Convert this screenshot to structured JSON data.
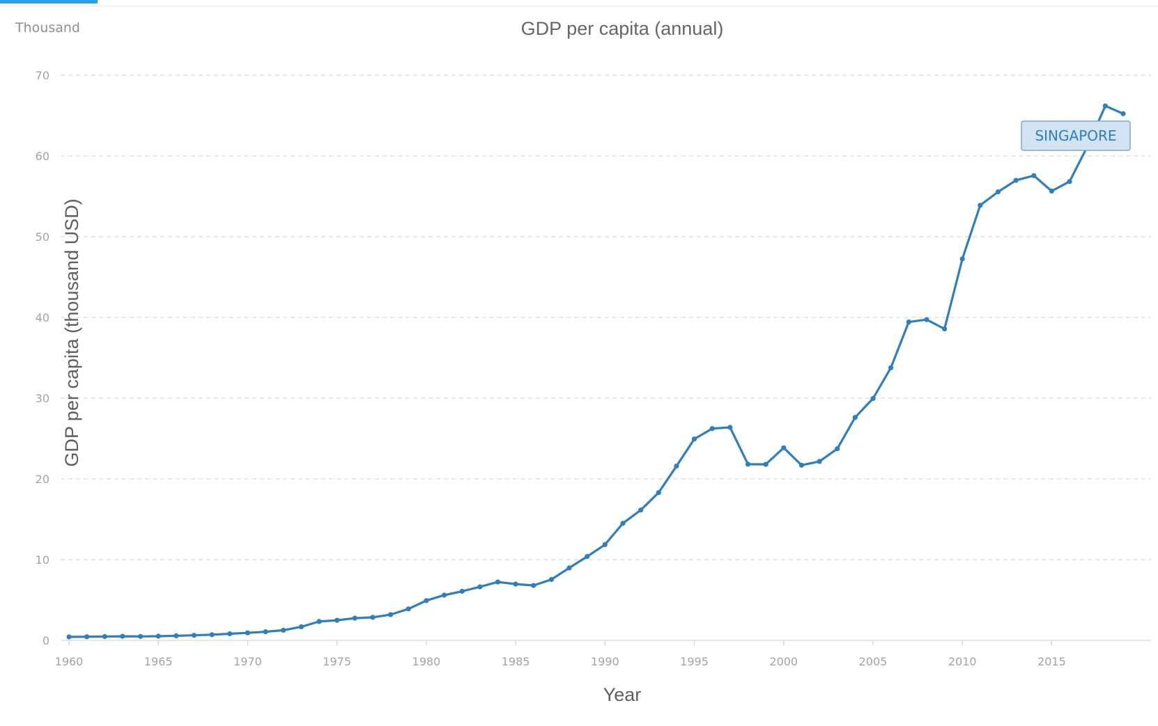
{
  "colors": {
    "series": "#2f7ebd",
    "tab_indicator": "#2aa3e6"
  },
  "chart_data": {
    "type": "line",
    "title": "GDP per capita (annual)",
    "unit_label": "Thousand",
    "xlabel": "Year",
    "ylabel": "GDP per capita (thousand USD)",
    "xlim": [
      1960,
      2019
    ],
    "ylim": [
      0,
      70
    ],
    "y_ticks": [
      0,
      10,
      20,
      30,
      40,
      50,
      60,
      70
    ],
    "x_ticks": [
      1960,
      1965,
      1970,
      1975,
      1980,
      1985,
      1990,
      1995,
      2000,
      2005,
      2010,
      2015
    ],
    "grid": true,
    "series": [
      {
        "name": "SINGAPORE",
        "x": [
          1960,
          1961,
          1962,
          1963,
          1964,
          1965,
          1966,
          1967,
          1968,
          1969,
          1970,
          1971,
          1972,
          1973,
          1974,
          1975,
          1976,
          1977,
          1978,
          1979,
          1980,
          1981,
          1982,
          1983,
          1984,
          1985,
          1986,
          1987,
          1988,
          1989,
          1990,
          1991,
          1992,
          1993,
          1994,
          1995,
          1996,
          1997,
          1998,
          1999,
          2000,
          2001,
          2002,
          2003,
          2004,
          2005,
          2006,
          2007,
          2008,
          2009,
          2010,
          2011,
          2012,
          2013,
          2014,
          2015,
          2016,
          2017,
          2018,
          2019
        ],
        "values": [
          0.43,
          0.45,
          0.47,
          0.51,
          0.49,
          0.52,
          0.57,
          0.63,
          0.71,
          0.82,
          0.93,
          1.07,
          1.26,
          1.68,
          2.34,
          2.49,
          2.75,
          2.85,
          3.19,
          3.9,
          4.93,
          5.6,
          6.08,
          6.63,
          7.23,
          6.97,
          6.8,
          7.54,
          8.97,
          10.39,
          11.86,
          14.5,
          16.14,
          18.3,
          21.58,
          24.94,
          26.23,
          26.38,
          21.82,
          21.8,
          23.85,
          21.7,
          22.16,
          23.73,
          27.61,
          29.96,
          33.77,
          39.43,
          39.72,
          38.58,
          47.24,
          53.89,
          55.55,
          56.97,
          57.56,
          55.65,
          56.83,
          61.18,
          66.19,
          65.23
        ]
      }
    ]
  }
}
